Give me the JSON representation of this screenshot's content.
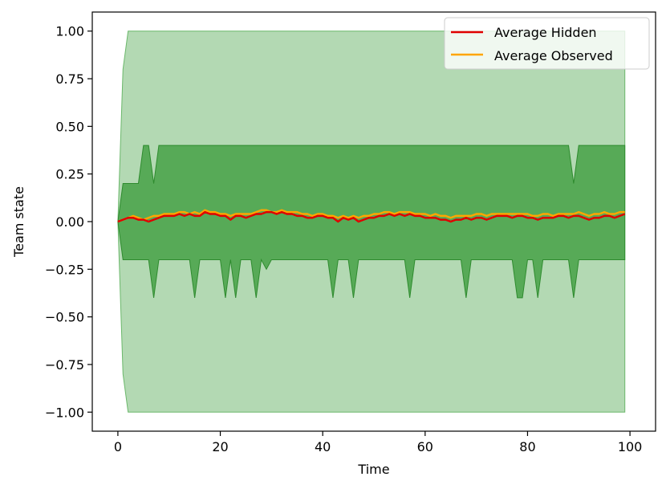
{
  "chart_data": {
    "type": "line",
    "title": "",
    "xlabel": "Time",
    "ylabel": "Team state",
    "xlim": [
      -5,
      105
    ],
    "ylim": [
      -1.1,
      1.1
    ],
    "xticks": [
      0,
      20,
      40,
      60,
      80,
      100
    ],
    "yticks": [
      -1.0,
      -0.75,
      -0.5,
      -0.25,
      0.0,
      0.25,
      0.5,
      0.75,
      1.0
    ],
    "xtick_labels": [
      "0",
      "20",
      "40",
      "60",
      "80",
      "100"
    ],
    "ytick_labels": [
      "−1.00",
      "−0.75",
      "−0.50",
      "−0.25",
      "0.00",
      "0.25",
      "0.50",
      "0.75",
      "1.00"
    ],
    "grid": false,
    "legend_position": "top-right",
    "series": [
      {
        "name": "Average Hidden",
        "color": "#e00000",
        "x": [
          0,
          1,
          2,
          3,
          4,
          5,
          6,
          7,
          8,
          9,
          10,
          11,
          12,
          13,
          14,
          15,
          16,
          17,
          18,
          19,
          20,
          21,
          22,
          23,
          24,
          25,
          26,
          27,
          28,
          29,
          30,
          31,
          32,
          33,
          34,
          35,
          36,
          37,
          38,
          39,
          40,
          41,
          42,
          43,
          44,
          45,
          46,
          47,
          48,
          49,
          50,
          51,
          52,
          53,
          54,
          55,
          56,
          57,
          58,
          59,
          60,
          61,
          62,
          63,
          64,
          65,
          66,
          67,
          68,
          69,
          70,
          71,
          72,
          73,
          74,
          75,
          76,
          77,
          78,
          79,
          80,
          81,
          82,
          83,
          84,
          85,
          86,
          87,
          88,
          89,
          90,
          91,
          92,
          93,
          94,
          95,
          96,
          97,
          98,
          99
        ],
        "y": [
          0.0,
          0.01,
          0.02,
          0.02,
          0.01,
          0.01,
          0.0,
          0.01,
          0.02,
          0.03,
          0.03,
          0.03,
          0.04,
          0.03,
          0.04,
          0.03,
          0.03,
          0.05,
          0.04,
          0.04,
          0.03,
          0.03,
          0.01,
          0.03,
          0.03,
          0.02,
          0.03,
          0.04,
          0.04,
          0.05,
          0.05,
          0.04,
          0.05,
          0.04,
          0.04,
          0.03,
          0.03,
          0.02,
          0.02,
          0.03,
          0.03,
          0.02,
          0.02,
          0.0,
          0.02,
          0.01,
          0.02,
          0.0,
          0.01,
          0.02,
          0.02,
          0.03,
          0.03,
          0.04,
          0.03,
          0.04,
          0.03,
          0.04,
          0.03,
          0.03,
          0.02,
          0.02,
          0.02,
          0.01,
          0.01,
          0.0,
          0.01,
          0.01,
          0.02,
          0.01,
          0.02,
          0.02,
          0.01,
          0.02,
          0.03,
          0.03,
          0.03,
          0.02,
          0.03,
          0.03,
          0.02,
          0.02,
          0.01,
          0.02,
          0.02,
          0.02,
          0.03,
          0.03,
          0.02,
          0.03,
          0.03,
          0.02,
          0.01,
          0.02,
          0.02,
          0.03,
          0.03,
          0.02,
          0.03,
          0.04
        ]
      },
      {
        "name": "Average Observed",
        "color": "#ffa500",
        "x": [
          0,
          1,
          2,
          3,
          4,
          5,
          6,
          7,
          8,
          9,
          10,
          11,
          12,
          13,
          14,
          15,
          16,
          17,
          18,
          19,
          20,
          21,
          22,
          23,
          24,
          25,
          26,
          27,
          28,
          29,
          30,
          31,
          32,
          33,
          34,
          35,
          36,
          37,
          38,
          39,
          40,
          41,
          42,
          43,
          44,
          45,
          46,
          47,
          48,
          49,
          50,
          51,
          52,
          53,
          54,
          55,
          56,
          57,
          58,
          59,
          60,
          61,
          62,
          63,
          64,
          65,
          66,
          67,
          68,
          69,
          70,
          71,
          72,
          73,
          74,
          75,
          76,
          77,
          78,
          79,
          80,
          81,
          82,
          83,
          84,
          85,
          86,
          87,
          88,
          89,
          90,
          91,
          92,
          93,
          94,
          95,
          96,
          97,
          98,
          99
        ],
        "y": [
          0.0,
          0.01,
          0.02,
          0.03,
          0.02,
          0.01,
          0.02,
          0.03,
          0.03,
          0.04,
          0.04,
          0.04,
          0.05,
          0.05,
          0.04,
          0.05,
          0.04,
          0.06,
          0.05,
          0.05,
          0.04,
          0.04,
          0.03,
          0.04,
          0.04,
          0.04,
          0.04,
          0.05,
          0.06,
          0.06,
          0.05,
          0.05,
          0.06,
          0.05,
          0.05,
          0.05,
          0.04,
          0.04,
          0.03,
          0.04,
          0.04,
          0.03,
          0.03,
          0.02,
          0.03,
          0.02,
          0.03,
          0.02,
          0.03,
          0.03,
          0.04,
          0.04,
          0.05,
          0.05,
          0.04,
          0.05,
          0.05,
          0.05,
          0.04,
          0.04,
          0.04,
          0.03,
          0.04,
          0.03,
          0.03,
          0.02,
          0.03,
          0.03,
          0.03,
          0.03,
          0.04,
          0.04,
          0.03,
          0.04,
          0.04,
          0.04,
          0.04,
          0.04,
          0.04,
          0.04,
          0.04,
          0.03,
          0.03,
          0.04,
          0.04,
          0.03,
          0.04,
          0.04,
          0.04,
          0.04,
          0.05,
          0.04,
          0.03,
          0.04,
          0.04,
          0.05,
          0.04,
          0.04,
          0.05,
          0.05
        ]
      }
    ],
    "bands": [
      {
        "description": "outer range",
        "color": "#b3d9b3",
        "x": [
          0,
          1,
          2,
          99
        ],
        "lower": [
          0.0,
          -0.8,
          -1.0,
          -1.0
        ],
        "upper": [
          0.0,
          0.8,
          1.0,
          1.0
        ]
      },
      {
        "description": "inner range",
        "color": "#57aa57",
        "x": [
          0,
          1,
          2,
          3,
          4,
          5,
          6,
          7,
          8,
          9,
          10,
          11,
          12,
          13,
          14,
          15,
          16,
          17,
          18,
          19,
          20,
          21,
          22,
          23,
          24,
          25,
          26,
          27,
          28,
          29,
          30,
          31,
          32,
          33,
          34,
          35,
          36,
          37,
          38,
          39,
          40,
          41,
          42,
          43,
          44,
          45,
          46,
          47,
          48,
          49,
          50,
          51,
          52,
          53,
          54,
          55,
          56,
          57,
          58,
          59,
          60,
          61,
          62,
          63,
          64,
          65,
          66,
          67,
          68,
          69,
          70,
          71,
          72,
          73,
          74,
          75,
          76,
          77,
          78,
          79,
          80,
          81,
          82,
          83,
          84,
          85,
          86,
          87,
          88,
          89,
          90,
          91,
          92,
          93,
          94,
          95,
          96,
          97,
          98,
          99
        ],
        "lower": [
          0.0,
          -0.2,
          -0.2,
          -0.2,
          -0.2,
          -0.2,
          -0.2,
          -0.4,
          -0.2,
          -0.2,
          -0.2,
          -0.2,
          -0.2,
          -0.2,
          -0.2,
          -0.4,
          -0.2,
          -0.2,
          -0.2,
          -0.2,
          -0.2,
          -0.4,
          -0.2,
          -0.4,
          -0.2,
          -0.2,
          -0.2,
          -0.4,
          -0.2,
          -0.25,
          -0.2,
          -0.2,
          -0.2,
          -0.2,
          -0.2,
          -0.2,
          -0.2,
          -0.2,
          -0.2,
          -0.2,
          -0.2,
          -0.2,
          -0.4,
          -0.2,
          -0.2,
          -0.2,
          -0.4,
          -0.2,
          -0.2,
          -0.2,
          -0.2,
          -0.2,
          -0.2,
          -0.2,
          -0.2,
          -0.2,
          -0.2,
          -0.4,
          -0.2,
          -0.2,
          -0.2,
          -0.2,
          -0.2,
          -0.2,
          -0.2,
          -0.2,
          -0.2,
          -0.2,
          -0.4,
          -0.2,
          -0.2,
          -0.2,
          -0.2,
          -0.2,
          -0.2,
          -0.2,
          -0.2,
          -0.2,
          -0.4,
          -0.4,
          -0.2,
          -0.2,
          -0.4,
          -0.2,
          -0.2,
          -0.2,
          -0.2,
          -0.2,
          -0.2,
          -0.4,
          -0.2,
          -0.2,
          -0.2,
          -0.2,
          -0.2,
          -0.2,
          -0.2,
          -0.2,
          -0.2,
          -0.2
        ],
        "upper": [
          0.0,
          0.2,
          0.2,
          0.2,
          0.2,
          0.4,
          0.4,
          0.2,
          0.4,
          0.4,
          0.4,
          0.4,
          0.4,
          0.4,
          0.4,
          0.4,
          0.4,
          0.4,
          0.4,
          0.4,
          0.4,
          0.4,
          0.4,
          0.4,
          0.4,
          0.4,
          0.4,
          0.4,
          0.4,
          0.4,
          0.4,
          0.4,
          0.4,
          0.4,
          0.4,
          0.4,
          0.4,
          0.4,
          0.4,
          0.4,
          0.4,
          0.4,
          0.4,
          0.4,
          0.4,
          0.4,
          0.4,
          0.4,
          0.4,
          0.4,
          0.4,
          0.4,
          0.4,
          0.4,
          0.4,
          0.4,
          0.4,
          0.4,
          0.4,
          0.4,
          0.4,
          0.4,
          0.4,
          0.4,
          0.4,
          0.4,
          0.4,
          0.4,
          0.4,
          0.4,
          0.4,
          0.4,
          0.4,
          0.4,
          0.4,
          0.4,
          0.4,
          0.4,
          0.4,
          0.4,
          0.4,
          0.4,
          0.4,
          0.4,
          0.4,
          0.4,
          0.4,
          0.4,
          0.4,
          0.2,
          0.4,
          0.4,
          0.4,
          0.4,
          0.4,
          0.4,
          0.4,
          0.4,
          0.4,
          0.4
        ]
      }
    ]
  }
}
